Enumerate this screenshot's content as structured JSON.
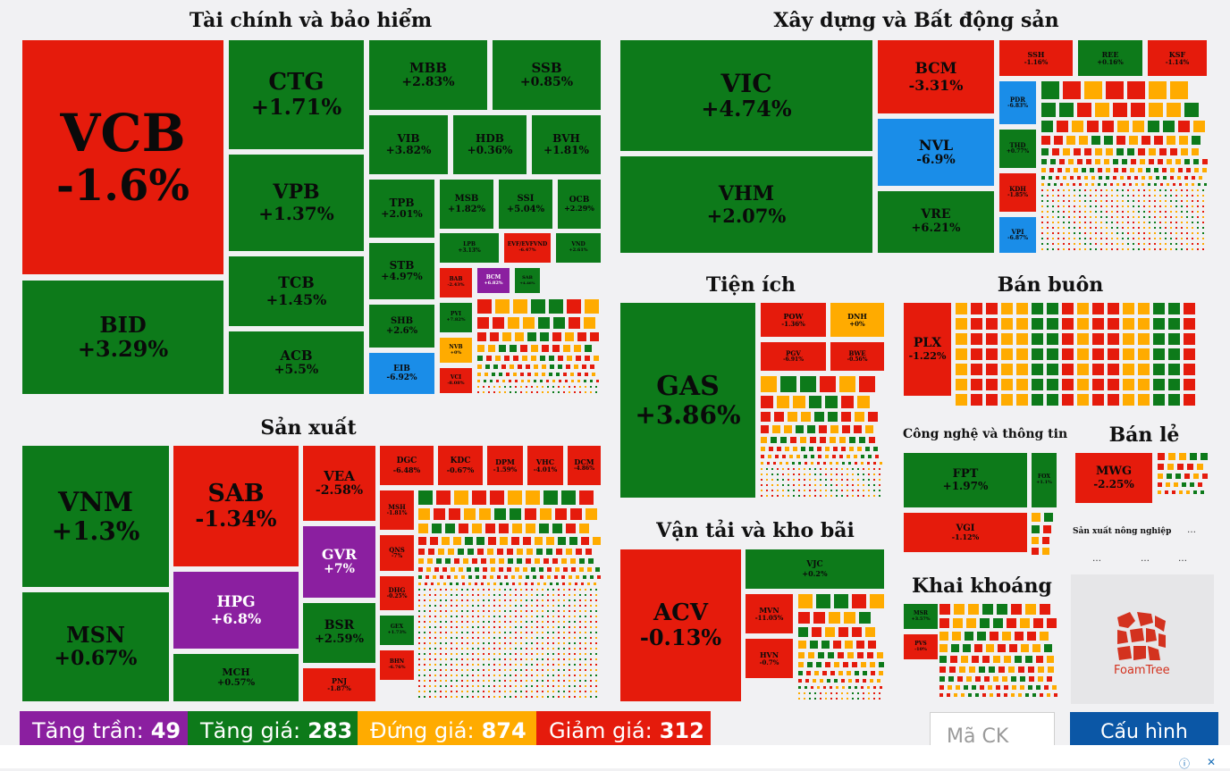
{
  "colors": {
    "up": "#0d7a1a",
    "down": "#e51b0c",
    "flat": "#ffab00",
    "ceiling": "#8b1fa0",
    "floor": "#1a8de8"
  },
  "sectors": {
    "finance": "Tài chính và bảo hiểm",
    "construction": "Xây dựng và Bất động sản",
    "manufacturing": "Sản xuất",
    "utilities": "Tiện ích",
    "wholesale": "Bán buôn",
    "transport": "Vận tải và kho bãi",
    "it": "Công nghệ và thông tin",
    "retail": "Bán lẻ",
    "agriculture": "Sản xuất nông nghiệp",
    "mining": "Khai khoáng"
  },
  "chart_data": {
    "type": "heatmap",
    "tiles": {
      "VCB": {
        "ticker": "VCB",
        "change": "-1.6%"
      },
      "BID": {
        "ticker": "BID",
        "change": "+3.29%"
      },
      "CTG": {
        "ticker": "CTG",
        "change": "+1.71%"
      },
      "VPB": {
        "ticker": "VPB",
        "change": "+1.37%"
      },
      "TCB": {
        "ticker": "TCB",
        "change": "+1.45%"
      },
      "ACB": {
        "ticker": "ACB",
        "change": "+5.5%"
      },
      "MBB": {
        "ticker": "MBB",
        "change": "+2.83%"
      },
      "SSB": {
        "ticker": "SSB",
        "change": "+0.85%"
      },
      "VIB": {
        "ticker": "VIB",
        "change": "+3.82%"
      },
      "HDB": {
        "ticker": "HDB",
        "change": "+0.36%"
      },
      "BVH": {
        "ticker": "BVH",
        "change": "+1.81%"
      },
      "TPB": {
        "ticker": "TPB",
        "change": "+2.01%"
      },
      "MSB": {
        "ticker": "MSB",
        "change": "+1.82%"
      },
      "SSI": {
        "ticker": "SSI",
        "change": "+5.04%"
      },
      "OCB": {
        "ticker": "OCB",
        "change": "+2.29%"
      },
      "STB": {
        "ticker": "STB",
        "change": "+4.97%"
      },
      "SHB": {
        "ticker": "SHB",
        "change": "+2.6%"
      },
      "EIB": {
        "ticker": "EIB",
        "change": "-6.92%"
      },
      "LPB": {
        "ticker": "LPB",
        "change": "+3.13%"
      },
      "EVF": {
        "ticker": "EVF/EVFVND",
        "change": "-6.47%"
      },
      "VND": {
        "ticker": "VND",
        "change": "+2.61%"
      },
      "BAB": {
        "ticker": "BAB",
        "change": "-2.43%"
      },
      "BCMf": {
        "ticker": "BCM",
        "change": "+6.82%"
      },
      "SAB2": {
        "ticker": "SAB",
        "change": "+4.46%"
      },
      "PVI": {
        "ticker": "PVI",
        "change": "+7.82%"
      },
      "NVB": {
        "ticker": "NVB",
        "change": "+0%"
      },
      "VCI": {
        "ticker": "VCI",
        "change": "-8.08%"
      },
      "VIC": {
        "ticker": "VIC",
        "change": "+4.74%"
      },
      "VHM": {
        "ticker": "VHM",
        "change": "+2.07%"
      },
      "BCM": {
        "ticker": "BCM",
        "change": "-3.31%"
      },
      "NVL": {
        "ticker": "NVL",
        "change": "-6.9%"
      },
      "VRE": {
        "ticker": "VRE",
        "change": "+6.21%"
      },
      "SSH": {
        "ticker": "SSH",
        "change": "-1.16%"
      },
      "REE": {
        "ticker": "REE",
        "change": "+0.16%"
      },
      "KSF": {
        "ticker": "KSF",
        "change": "-1.14%"
      },
      "PDR": {
        "ticker": "PDR",
        "change": "-6.83%"
      },
      "THD": {
        "ticker": "THD",
        "change": "+0.77%"
      },
      "KDH": {
        "ticker": "KDH",
        "change": "-1.85%"
      },
      "VPI": {
        "ticker": "VPI",
        "change": "-6.87%"
      },
      "VNM": {
        "ticker": "VNM",
        "change": "+1.3%"
      },
      "MSN": {
        "ticker": "MSN",
        "change": "+0.67%"
      },
      "SAB": {
        "ticker": "SAB",
        "change": "-1.34%"
      },
      "HPG": {
        "ticker": "HPG",
        "change": "+6.8%"
      },
      "MCH": {
        "ticker": "MCH",
        "change": "+0.57%"
      },
      "VEA": {
        "ticker": "VEA",
        "change": "-2.58%"
      },
      "GVR": {
        "ticker": "GVR",
        "change": "+7%"
      },
      "BSR": {
        "ticker": "BSR",
        "change": "+2.59%"
      },
      "PNJ": {
        "ticker": "PNJ",
        "change": "-1.87%"
      },
      "DGC": {
        "ticker": "DGC",
        "change": "-6.48%"
      },
      "KDC": {
        "ticker": "KDC",
        "change": "-0.67%"
      },
      "DPM": {
        "ticker": "DPM",
        "change": "-1.59%"
      },
      "VHC": {
        "ticker": "VHC",
        "change": "-4.01%"
      },
      "DCM": {
        "ticker": "DCM",
        "change": "-4.86%"
      },
      "MSH": {
        "ticker": "MSH",
        "change": "-1.81%"
      },
      "QNS": {
        "ticker": "QNS",
        "change": "-7%"
      },
      "DHG": {
        "ticker": "DHG",
        "change": "-0.25%"
      },
      "GEX": {
        "ticker": "GEX",
        "change": "+1.73%"
      },
      "BHN": {
        "ticker": "BHN",
        "change": "-6.76%"
      },
      "GAS": {
        "ticker": "GAS",
        "change": "+3.86%"
      },
      "POW": {
        "ticker": "POW",
        "change": "-1.36%"
      },
      "DNH": {
        "ticker": "DNH",
        "change": "+0%"
      },
      "PGV": {
        "ticker": "PGV",
        "change": "-6.91%"
      },
      "BWE": {
        "ticker": "BWE",
        "change": "-0.56%"
      },
      "PLX": {
        "ticker": "PLX",
        "change": "-1.22%"
      },
      "FPT": {
        "ticker": "FPT",
        "change": "+1.97%"
      },
      "FOX": {
        "ticker": "FOX",
        "change": "+1.1%"
      },
      "VGI": {
        "ticker": "VGI",
        "change": "-1.12%"
      },
      "MWG": {
        "ticker": "MWG",
        "change": "-2.25%"
      },
      "ACV": {
        "ticker": "ACV",
        "change": "-0.13%"
      },
      "VJC": {
        "ticker": "VJC",
        "change": "+0.2%"
      },
      "MVN": {
        "ticker": "MVN",
        "change": "-11.05%"
      },
      "HVN": {
        "ticker": "HVN",
        "change": "-0.7%"
      },
      "MSR": {
        "ticker": "MSR",
        "change": "+3.57%"
      },
      "PVS": {
        "ticker": "PVS",
        "change": "-10%"
      }
    }
  },
  "status": {
    "ceiling_label": "Tăng trần:",
    "ceiling_count": "49",
    "up_label": "Tăng giá:",
    "up_count": "283",
    "flat_label": "Đứng giá:",
    "flat_count": "874",
    "down_label": "Giảm giá:",
    "down_count": "312"
  },
  "search": {
    "placeholder": "Mã CK"
  },
  "config_label": "Cấu hình",
  "foamtree_label": "FoamTree",
  "ellipsis": "…"
}
